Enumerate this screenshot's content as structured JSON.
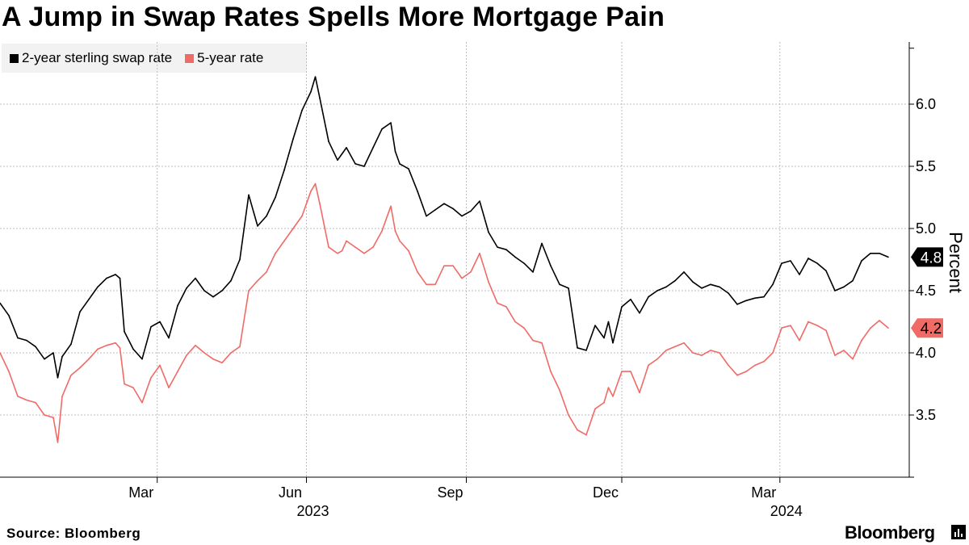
{
  "header": {
    "title": "A Jump in Swap Rates Spells More Mortgage Pain"
  },
  "legend": [
    {
      "label": "2-year sterling swap rate",
      "color": "#000000"
    },
    {
      "label": "5-year rate",
      "color": "#f06a66"
    }
  ],
  "footer": {
    "source": "Source: Bloomberg",
    "brand": "Bloomberg"
  },
  "icons": {
    "brand": "bloomberg-chart-icon"
  },
  "chart_data": {
    "type": "line",
    "title": "A Jump in Swap Rates Spells More Mortgage Pain",
    "ylabel": "Percent",
    "xlabel": "",
    "ylim": [
      3.0,
      6.5
    ],
    "yticks": [
      3.5,
      4.0,
      4.5,
      5.0,
      5.5,
      6.0
    ],
    "ytick_labels": [
      "3.5",
      "4.0",
      "4.5",
      "5.0",
      "5.5",
      "6.0"
    ],
    "xlim": [
      0,
      1.0
    ],
    "xticks": [
      {
        "x": 0.177,
        "label": "Mar",
        "year": ""
      },
      {
        "x": 0.345,
        "label": "Jun",
        "year": "2023"
      },
      {
        "x": 0.525,
        "label": "Sep",
        "year": ""
      },
      {
        "x": 0.7,
        "label": "Dec",
        "year": ""
      },
      {
        "x": 0.878,
        "label": "Mar",
        "year": "2024"
      }
    ],
    "grid": true,
    "legend_position": "top-left",
    "series": [
      {
        "name": "2-year sterling swap rate",
        "color": "#000000",
        "last_value_label": "4.8",
        "x": [
          0.0,
          0.01,
          0.02,
          0.03,
          0.04,
          0.05,
          0.06,
          0.065,
          0.07,
          0.08,
          0.09,
          0.1,
          0.11,
          0.12,
          0.13,
          0.135,
          0.14,
          0.15,
          0.16,
          0.17,
          0.18,
          0.19,
          0.2,
          0.21,
          0.22,
          0.23,
          0.24,
          0.25,
          0.26,
          0.27,
          0.28,
          0.29,
          0.3,
          0.31,
          0.32,
          0.33,
          0.34,
          0.35,
          0.355,
          0.36,
          0.37,
          0.38,
          0.385,
          0.39,
          0.4,
          0.41,
          0.42,
          0.43,
          0.44,
          0.445,
          0.45,
          0.46,
          0.47,
          0.48,
          0.49,
          0.5,
          0.51,
          0.52,
          0.53,
          0.54,
          0.55,
          0.56,
          0.57,
          0.58,
          0.59,
          0.6,
          0.61,
          0.62,
          0.63,
          0.64,
          0.65,
          0.66,
          0.67,
          0.68,
          0.685,
          0.69,
          0.7,
          0.71,
          0.72,
          0.73,
          0.74,
          0.75,
          0.76,
          0.77,
          0.78,
          0.79,
          0.8,
          0.81,
          0.82,
          0.83,
          0.84,
          0.85,
          0.86,
          0.87,
          0.88,
          0.89,
          0.9,
          0.91,
          0.92,
          0.93,
          0.94,
          0.95,
          0.96,
          0.97,
          0.98,
          0.99,
          1.0
        ],
        "values": [
          4.4,
          4.3,
          4.12,
          4.1,
          4.05,
          3.95,
          4.0,
          3.8,
          3.97,
          4.07,
          4.33,
          4.43,
          4.53,
          4.6,
          4.63,
          4.6,
          4.17,
          4.03,
          3.95,
          4.21,
          4.25,
          4.12,
          4.38,
          4.52,
          4.6,
          4.5,
          4.45,
          4.5,
          4.58,
          4.75,
          5.27,
          5.02,
          5.1,
          5.25,
          5.47,
          5.72,
          5.95,
          6.1,
          6.22,
          6.05,
          5.7,
          5.55,
          5.6,
          5.65,
          5.52,
          5.5,
          5.65,
          5.8,
          5.85,
          5.62,
          5.52,
          5.48,
          5.3,
          5.1,
          5.15,
          5.2,
          5.16,
          5.1,
          5.14,
          5.22,
          4.97,
          4.85,
          4.83,
          4.77,
          4.72,
          4.65,
          4.88,
          4.7,
          4.55,
          4.52,
          4.04,
          4.02,
          4.22,
          4.12,
          4.25,
          4.08,
          4.37,
          4.43,
          4.32,
          4.45,
          4.5,
          4.53,
          4.58,
          4.65,
          4.57,
          4.52,
          4.55,
          4.53,
          4.48,
          4.39,
          4.42,
          4.44,
          4.45,
          4.55,
          4.72,
          4.74,
          4.63,
          4.76,
          4.72,
          4.66,
          4.5,
          4.53,
          4.58,
          4.74,
          4.8,
          4.8,
          4.77
        ]
      },
      {
        "name": "5-year rate",
        "color": "#f06a66",
        "last_value_label": "4.2",
        "x": [
          0.0,
          0.01,
          0.02,
          0.03,
          0.04,
          0.05,
          0.06,
          0.065,
          0.07,
          0.08,
          0.09,
          0.1,
          0.11,
          0.12,
          0.13,
          0.135,
          0.14,
          0.15,
          0.16,
          0.17,
          0.18,
          0.19,
          0.2,
          0.21,
          0.22,
          0.23,
          0.24,
          0.25,
          0.26,
          0.27,
          0.28,
          0.29,
          0.3,
          0.31,
          0.32,
          0.33,
          0.34,
          0.35,
          0.355,
          0.36,
          0.37,
          0.38,
          0.385,
          0.39,
          0.4,
          0.41,
          0.42,
          0.43,
          0.44,
          0.445,
          0.45,
          0.46,
          0.47,
          0.48,
          0.49,
          0.5,
          0.51,
          0.52,
          0.53,
          0.54,
          0.55,
          0.56,
          0.57,
          0.58,
          0.59,
          0.6,
          0.61,
          0.62,
          0.63,
          0.64,
          0.65,
          0.66,
          0.67,
          0.68,
          0.685,
          0.69,
          0.7,
          0.71,
          0.72,
          0.73,
          0.74,
          0.75,
          0.76,
          0.77,
          0.78,
          0.79,
          0.8,
          0.81,
          0.82,
          0.83,
          0.84,
          0.85,
          0.86,
          0.87,
          0.88,
          0.89,
          0.9,
          0.91,
          0.92,
          0.93,
          0.94,
          0.95,
          0.96,
          0.97,
          0.98,
          0.99,
          1.0
        ],
        "values": [
          4.0,
          3.85,
          3.65,
          3.62,
          3.6,
          3.5,
          3.48,
          3.28,
          3.65,
          3.82,
          3.88,
          3.95,
          4.03,
          4.06,
          4.08,
          4.04,
          3.75,
          3.72,
          3.6,
          3.8,
          3.9,
          3.72,
          3.85,
          3.98,
          4.06,
          4.0,
          3.95,
          3.92,
          4.0,
          4.05,
          4.5,
          4.58,
          4.65,
          4.8,
          4.9,
          5.0,
          5.1,
          5.3,
          5.36,
          5.2,
          4.85,
          4.8,
          4.82,
          4.9,
          4.85,
          4.8,
          4.85,
          4.98,
          5.18,
          4.98,
          4.9,
          4.82,
          4.65,
          4.55,
          4.55,
          4.7,
          4.7,
          4.6,
          4.65,
          4.8,
          4.57,
          4.4,
          4.37,
          4.25,
          4.2,
          4.1,
          4.08,
          3.85,
          3.7,
          3.5,
          3.38,
          3.34,
          3.55,
          3.6,
          3.72,
          3.65,
          3.85,
          3.85,
          3.68,
          3.9,
          3.95,
          4.02,
          4.05,
          4.08,
          4.0,
          3.98,
          4.02,
          4.0,
          3.9,
          3.82,
          3.85,
          3.9,
          3.93,
          4.0,
          4.2,
          4.22,
          4.1,
          4.25,
          4.22,
          4.18,
          3.98,
          4.02,
          3.95,
          4.1,
          4.2,
          4.26,
          4.2
        ]
      }
    ]
  }
}
